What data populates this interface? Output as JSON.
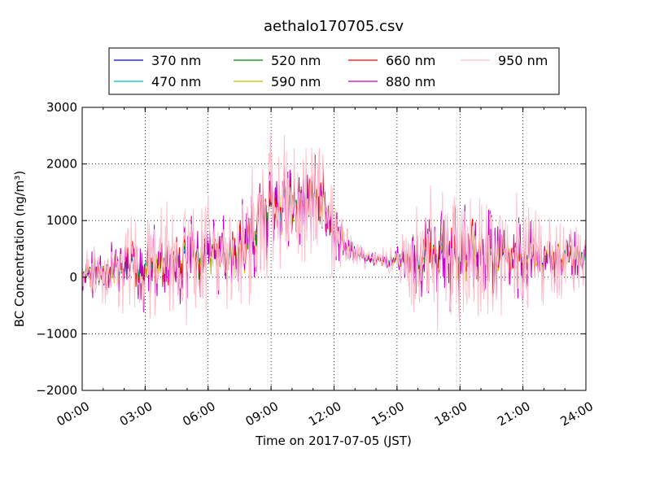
{
  "chart_data": {
    "type": "line",
    "title": "aethalo170705.csv",
    "xlabel": "Time on 2017-07-05 (JST)",
    "ylabel": "BC Concentration (ng/m³)",
    "xlim": [
      0,
      24
    ],
    "ylim": [
      -2000,
      3000
    ],
    "x_ticks": [
      "00:00",
      "03:00",
      "06:00",
      "09:00",
      "12:00",
      "15:00",
      "18:00",
      "21:00",
      "24:00"
    ],
    "y_ticks": [
      -2000,
      -1000,
      0,
      1000,
      2000,
      3000
    ],
    "y_tick_labels": [
      "−2000",
      "−1000",
      "0",
      "1000",
      "2000",
      "3000"
    ],
    "grid": true,
    "legend_position": "top-center",
    "series": [
      {
        "name": "370 nm",
        "color": "#0000ff",
        "amp": 0.45,
        "seed": 1
      },
      {
        "name": "470 nm",
        "color": "#00bfbf",
        "amp": 0.55,
        "seed": 2
      },
      {
        "name": "520 nm",
        "color": "#008000",
        "amp": 0.65,
        "seed": 3
      },
      {
        "name": "590 nm",
        "color": "#bfbf00",
        "amp": 0.75,
        "seed": 4
      },
      {
        "name": "660 nm",
        "color": "#ff0000",
        "amp": 0.85,
        "seed": 5
      },
      {
        "name": "880 nm",
        "color": "#bf00bf",
        "amp": 1.25,
        "seed": 6
      },
      {
        "name": "950 nm",
        "color": "#ffc0cb",
        "amp": 1.7,
        "seed": 7
      }
    ],
    "baseline": {
      "x": [
        0,
        1,
        2,
        3,
        4,
        5,
        6,
        7,
        8,
        8.5,
        9,
        9.5,
        10,
        10.5,
        11,
        11.5,
        12,
        12.5,
        13,
        13.5,
        14,
        15,
        16,
        17,
        18,
        19,
        20,
        21,
        22,
        23,
        24
      ],
      "y": [
        0,
        100,
        150,
        120,
        250,
        350,
        400,
        300,
        700,
        1100,
        1300,
        1350,
        1250,
        1400,
        1500,
        1300,
        800,
        600,
        400,
        350,
        300,
        300,
        350,
        350,
        400,
        400,
        350,
        350,
        300,
        350,
        300
      ]
    },
    "noise": {
      "x": [
        0,
        2,
        4,
        6,
        8,
        9,
        10,
        12,
        12.5,
        13,
        14,
        15,
        16,
        18,
        20,
        22,
        24
      ],
      "y": [
        250,
        500,
        650,
        550,
        700,
        800,
        700,
        500,
        250,
        150,
        100,
        180,
        650,
        700,
        650,
        450,
        350
      ]
    },
    "samples_per_hour": 30
  }
}
